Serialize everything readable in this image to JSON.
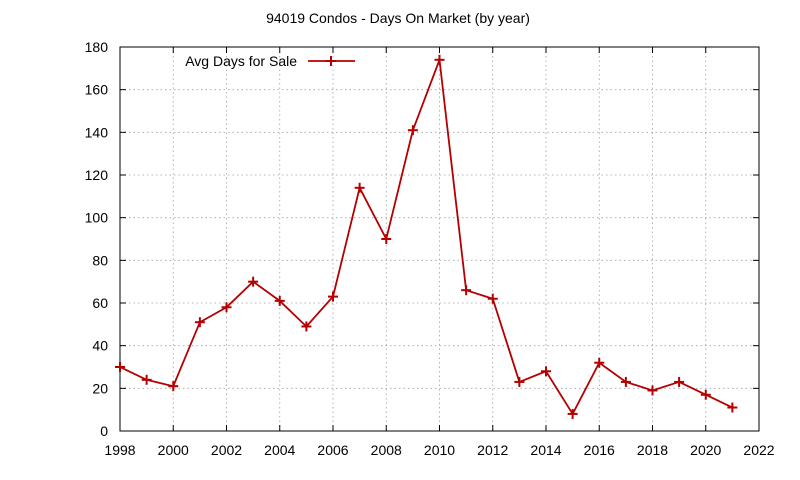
{
  "chart_data": {
    "type": "line",
    "title": "94019 Condos - Days On Market (by year)",
    "xlabel": "",
    "ylabel": "",
    "xlim": [
      1998,
      2022
    ],
    "ylim": [
      0,
      180
    ],
    "x_ticks": [
      "1998",
      "2000",
      "2002",
      "2004",
      "2006",
      "2008",
      "2010",
      "2012",
      "2014",
      "2016",
      "2018",
      "2020",
      "2022"
    ],
    "y_ticks": [
      "0",
      "20",
      "40",
      "60",
      "80",
      "100",
      "120",
      "140",
      "160",
      "180"
    ],
    "grid": true,
    "legend_position": "top-left",
    "series": [
      {
        "name": "Avg Days for Sale",
        "color": "#b40000",
        "marker": "plus",
        "x": [
          1998,
          1999,
          2000,
          2001,
          2002,
          2003,
          2004,
          2005,
          2006,
          2007,
          2008,
          2009,
          2010,
          2011,
          2012,
          2013,
          2014,
          2015,
          2016,
          2017,
          2018,
          2019,
          2020,
          2021
        ],
        "y": [
          30,
          24,
          21,
          51,
          58,
          70,
          61,
          49,
          63,
          114,
          90,
          141,
          174,
          66,
          62,
          23,
          28,
          8,
          32,
          23,
          19,
          23,
          17,
          11
        ]
      }
    ]
  }
}
